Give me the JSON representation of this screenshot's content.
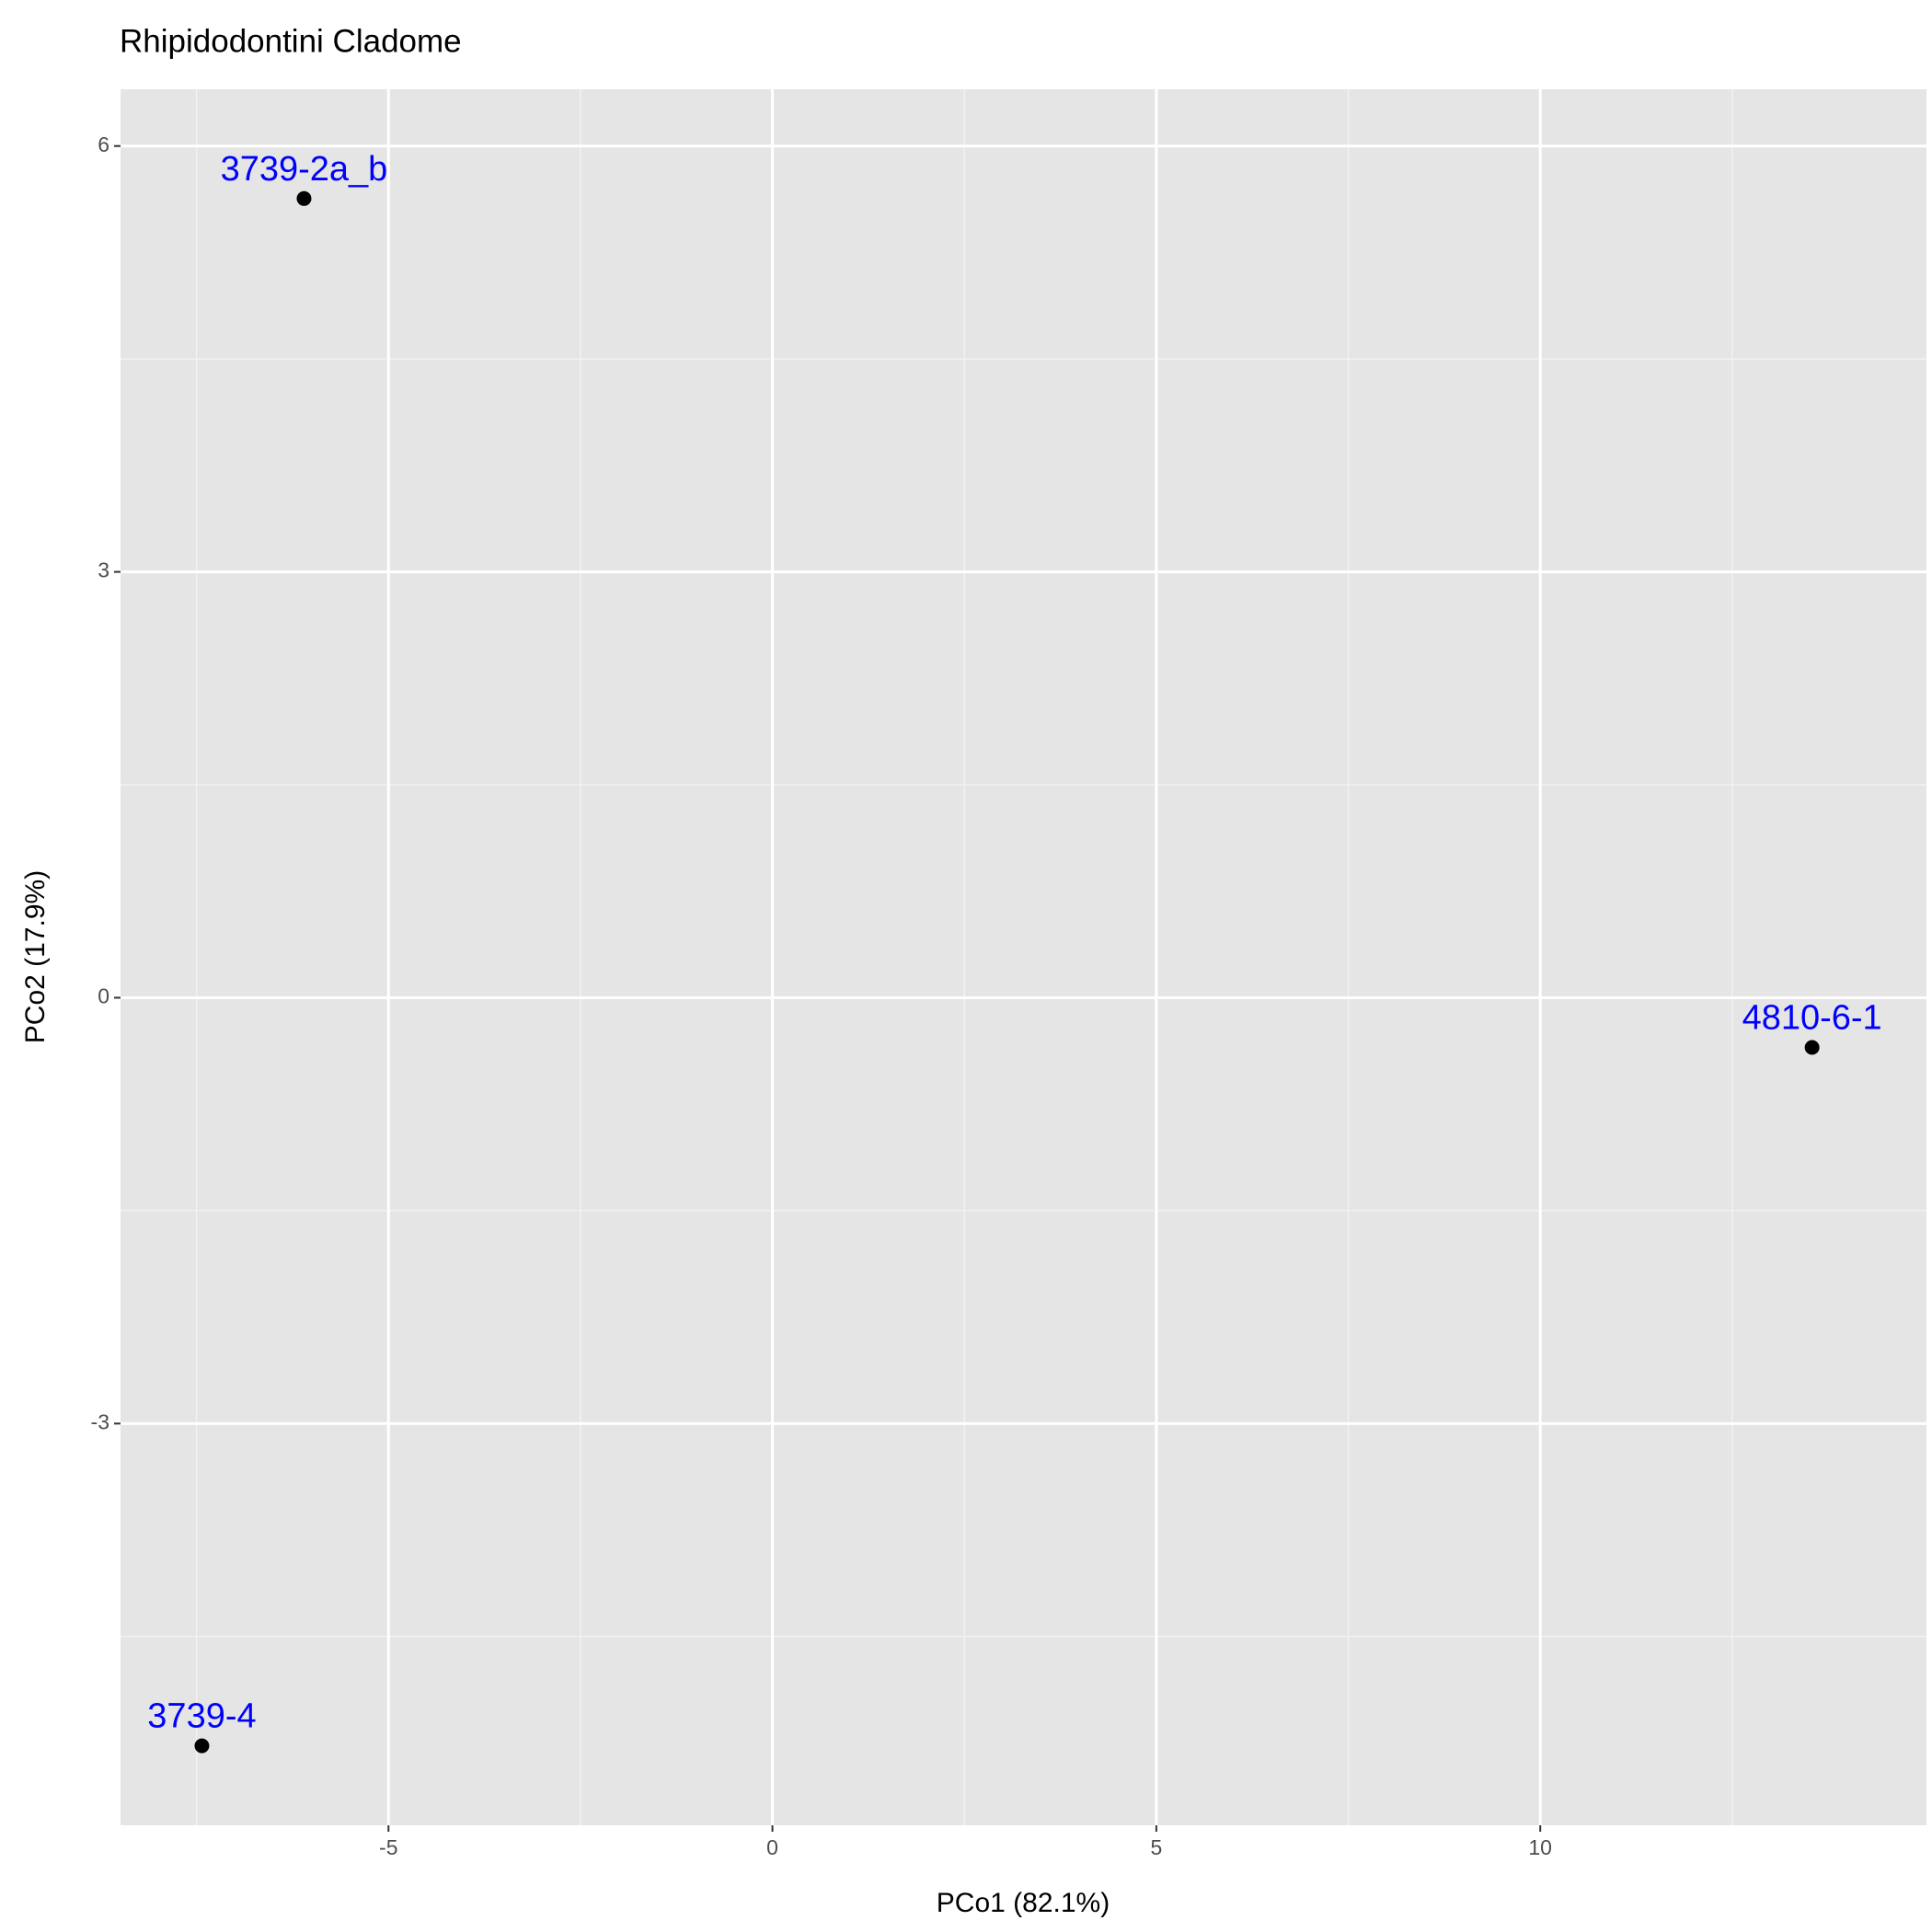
{
  "chart_data": {
    "type": "scatter",
    "title": "Rhipidodontini Cladome",
    "x_label": "PCo1 (82.1%)",
    "y_label": "PCo2 (17.9%)",
    "x": [
      -6.1,
      -7.43,
      13.54
    ],
    "values": [
      5.63,
      -5.27,
      -0.35
    ],
    "labels": [
      "3739-2a_b",
      "3739-4",
      "4810-6-1"
    ],
    "color": "#000000",
    "label_color": "#0000ff",
    "xlim": [
      -8.49,
      15.03
    ],
    "ylim": [
      -5.83,
      6.4
    ],
    "xticks": [
      -5,
      0,
      5,
      10
    ],
    "yticks": [
      -3,
      0,
      3,
      6
    ],
    "grid": true
  }
}
